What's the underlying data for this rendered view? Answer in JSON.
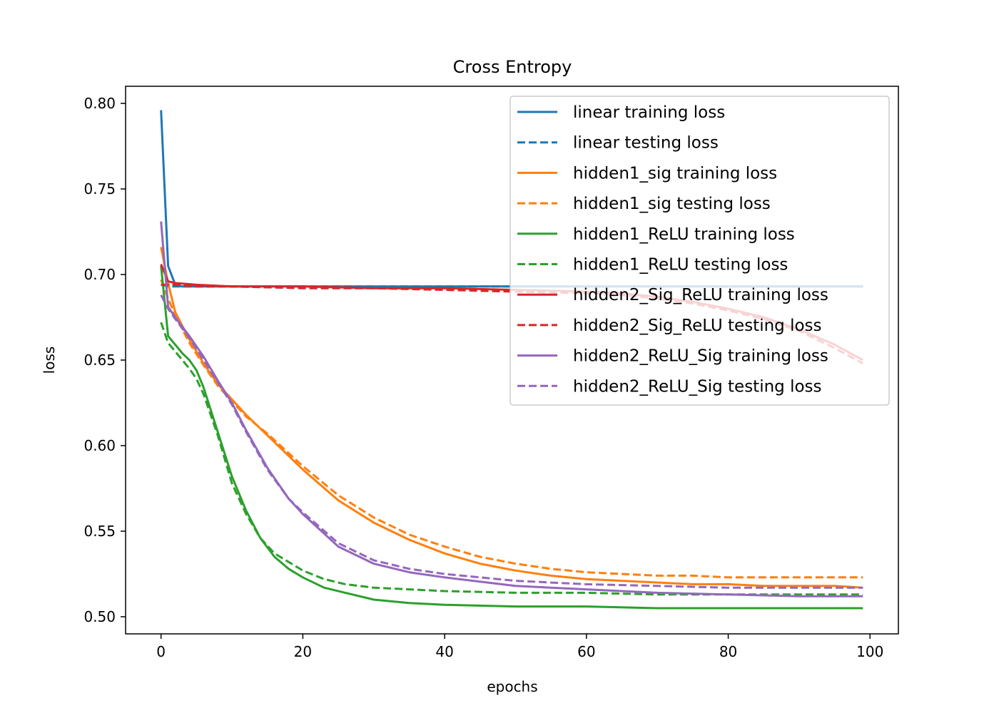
{
  "chart_data": {
    "type": "line",
    "title": "Cross Entropy",
    "xlabel": "epochs",
    "ylabel": "loss",
    "xlim": [
      -5,
      104
    ],
    "ylim": [
      0.49,
      0.81
    ],
    "xticks": [
      0,
      20,
      40,
      60,
      80,
      100
    ],
    "yticks": [
      0.5,
      0.55,
      0.6,
      0.65,
      0.7,
      0.75,
      0.8
    ],
    "grid": false,
    "legend_position": "top-right",
    "series": [
      {
        "name": "linear training loss",
        "color": "#1f77b4",
        "dash": "solid",
        "x": [
          0,
          1,
          2,
          3,
          5,
          10,
          20,
          40,
          60,
          80,
          99
        ],
        "y": [
          0.796,
          0.705,
          0.694,
          0.693,
          0.693,
          0.693,
          0.693,
          0.693,
          0.693,
          0.693,
          0.693
        ]
      },
      {
        "name": "linear testing loss",
        "color": "#1f77b4",
        "dash": "dashed",
        "x": [
          0,
          1,
          2,
          3,
          5,
          10,
          20,
          40,
          60,
          80,
          99
        ],
        "y": [
          0.694,
          0.693,
          0.693,
          0.693,
          0.693,
          0.693,
          0.693,
          0.693,
          0.693,
          0.693,
          0.693
        ]
      },
      {
        "name": "hidden1_sig training loss",
        "color": "#ff7f0e",
        "dash": "solid",
        "x": [
          0,
          1,
          2,
          4,
          6,
          8,
          10,
          12,
          15,
          20,
          25,
          30,
          35,
          40,
          45,
          50,
          55,
          60,
          65,
          70,
          75,
          80,
          85,
          90,
          95,
          99
        ],
        "y": [
          0.716,
          0.695,
          0.678,
          0.662,
          0.648,
          0.636,
          0.627,
          0.618,
          0.606,
          0.586,
          0.568,
          0.555,
          0.545,
          0.537,
          0.531,
          0.527,
          0.524,
          0.522,
          0.521,
          0.52,
          0.519,
          0.519,
          0.518,
          0.518,
          0.518,
          0.517
        ]
      },
      {
        "name": "hidden1_sig testing loss",
        "color": "#ff7f0e",
        "dash": "dashed",
        "x": [
          0,
          1,
          2,
          4,
          6,
          8,
          10,
          12,
          15,
          20,
          25,
          30,
          35,
          40,
          45,
          50,
          55,
          60,
          65,
          70,
          75,
          80,
          85,
          90,
          95,
          99
        ],
        "y": [
          0.697,
          0.686,
          0.676,
          0.66,
          0.647,
          0.635,
          0.626,
          0.617,
          0.607,
          0.588,
          0.571,
          0.558,
          0.548,
          0.541,
          0.535,
          0.531,
          0.528,
          0.526,
          0.525,
          0.524,
          0.524,
          0.523,
          0.523,
          0.523,
          0.523,
          0.523
        ]
      },
      {
        "name": "hidden1_ReLU training loss",
        "color": "#2ca02c",
        "dash": "solid",
        "x": [
          0,
          1,
          2,
          3,
          4,
          5,
          6,
          8,
          10,
          12,
          14,
          16,
          18,
          20,
          23,
          26,
          30,
          35,
          40,
          50,
          60,
          70,
          80,
          90,
          99
        ],
        "y": [
          0.705,
          0.664,
          0.659,
          0.654,
          0.65,
          0.644,
          0.634,
          0.608,
          0.582,
          0.562,
          0.546,
          0.535,
          0.528,
          0.523,
          0.517,
          0.514,
          0.51,
          0.508,
          0.507,
          0.506,
          0.506,
          0.505,
          0.505,
          0.505,
          0.505
        ]
      },
      {
        "name": "hidden1_ReLU testing loss",
        "color": "#2ca02c",
        "dash": "dashed",
        "x": [
          0,
          1,
          2,
          3,
          4,
          5,
          6,
          8,
          10,
          12,
          14,
          16,
          18,
          20,
          23,
          26,
          30,
          35,
          40,
          50,
          60,
          70,
          80,
          90,
          99
        ],
        "y": [
          0.672,
          0.66,
          0.655,
          0.65,
          0.645,
          0.639,
          0.63,
          0.606,
          0.578,
          0.56,
          0.546,
          0.537,
          0.532,
          0.527,
          0.522,
          0.519,
          0.517,
          0.516,
          0.515,
          0.514,
          0.514,
          0.513,
          0.513,
          0.513,
          0.513
        ]
      },
      {
        "name": "hidden2_Sig_ReLU training loss",
        "color": "#d62728",
        "dash": "solid",
        "x": [
          0,
          1,
          2,
          5,
          10,
          20,
          30,
          40,
          50,
          60,
          65,
          70,
          75,
          80,
          85,
          90,
          95,
          99
        ],
        "y": [
          0.706,
          0.696,
          0.695,
          0.694,
          0.693,
          0.693,
          0.692,
          0.692,
          0.691,
          0.69,
          0.689,
          0.687,
          0.684,
          0.68,
          0.675,
          0.668,
          0.659,
          0.65
        ]
      },
      {
        "name": "hidden2_Sig_ReLU testing loss",
        "color": "#d62728",
        "dash": "dashed",
        "x": [
          0,
          1,
          2,
          5,
          10,
          20,
          30,
          40,
          50,
          60,
          65,
          70,
          75,
          80,
          85,
          90,
          95,
          99
        ],
        "y": [
          0.694,
          0.694,
          0.694,
          0.693,
          0.693,
          0.692,
          0.692,
          0.691,
          0.69,
          0.689,
          0.688,
          0.686,
          0.683,
          0.679,
          0.674,
          0.667,
          0.657,
          0.648
        ]
      },
      {
        "name": "hidden2_ReLU_Sig training loss",
        "color": "#9467bd",
        "dash": "solid",
        "x": [
          0,
          1,
          2,
          4,
          6,
          8,
          10,
          12,
          15,
          18,
          20,
          25,
          30,
          35,
          40,
          50,
          60,
          70,
          80,
          90,
          99
        ],
        "y": [
          0.731,
          0.681,
          0.675,
          0.664,
          0.652,
          0.638,
          0.625,
          0.609,
          0.587,
          0.569,
          0.56,
          0.541,
          0.531,
          0.526,
          0.523,
          0.518,
          0.516,
          0.514,
          0.513,
          0.512,
          0.512
        ]
      },
      {
        "name": "hidden2_ReLU_Sig testing loss",
        "color": "#9467bd",
        "dash": "dashed",
        "x": [
          0,
          1,
          2,
          4,
          6,
          8,
          10,
          12,
          15,
          18,
          20,
          25,
          30,
          35,
          40,
          50,
          60,
          70,
          80,
          90,
          99
        ],
        "y": [
          0.688,
          0.68,
          0.674,
          0.663,
          0.65,
          0.637,
          0.624,
          0.608,
          0.586,
          0.569,
          0.561,
          0.543,
          0.533,
          0.528,
          0.525,
          0.521,
          0.519,
          0.518,
          0.517,
          0.517,
          0.517
        ]
      }
    ]
  }
}
